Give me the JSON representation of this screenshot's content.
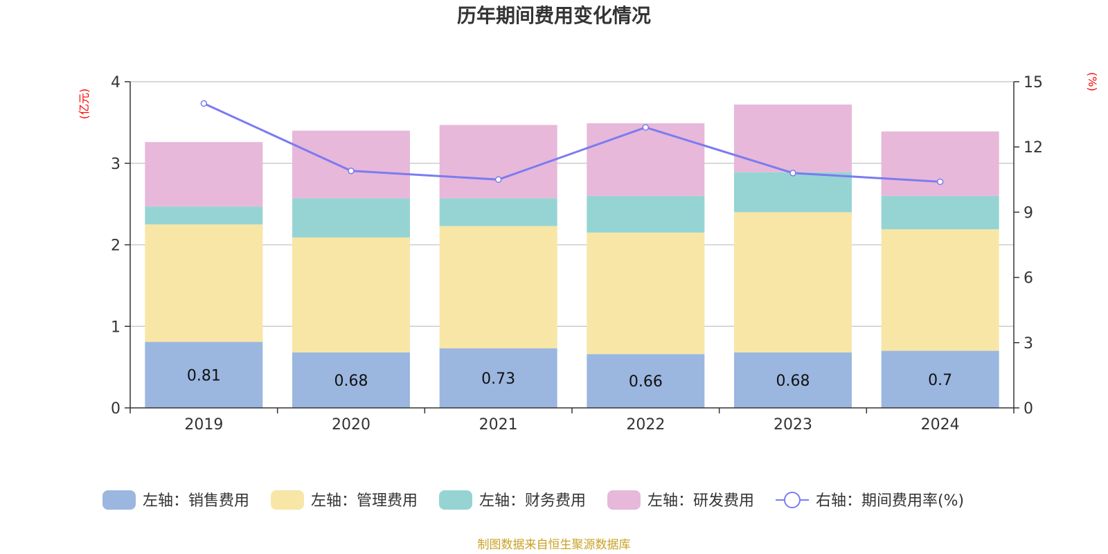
{
  "chart_data": {
    "type": "bar",
    "stacked": true,
    "title": "历年期间费用变化情况",
    "categories": [
      "2019",
      "2020",
      "2021",
      "2022",
      "2023",
      "2024"
    ],
    "left_axis": {
      "unit_label": "(亿元)",
      "ylim": [
        0,
        4
      ],
      "ticks": [
        "0",
        "1",
        "2",
        "3",
        "4"
      ]
    },
    "right_axis": {
      "unit_label": "(%)",
      "ylim": [
        0,
        15
      ],
      "ticks": [
        "0",
        "3",
        "6",
        "9",
        "12",
        "15"
      ]
    },
    "series": [
      {
        "name": "左轴：销售费用",
        "axis": "left",
        "color": "#9bb7e0",
        "values": [
          0.81,
          0.68,
          0.73,
          0.66,
          0.68,
          0.7
        ],
        "data_labels": [
          "0.81",
          "0.68",
          "0.73",
          "0.66",
          "0.68",
          "0.7"
        ]
      },
      {
        "name": "左轴：管理费用",
        "axis": "left",
        "color": "#f7e6a6",
        "values": [
          1.44,
          1.41,
          1.5,
          1.49,
          1.72,
          1.49
        ]
      },
      {
        "name": "左轴：财务费用",
        "axis": "left",
        "color": "#96d4d4",
        "values": [
          0.22,
          0.48,
          0.34,
          0.45,
          0.49,
          0.41
        ]
      },
      {
        "name": "左轴：研发费用",
        "axis": "left",
        "color": "#e7b8d9",
        "values": [
          0.79,
          0.83,
          0.9,
          0.89,
          0.83,
          0.79
        ]
      },
      {
        "name": "右轴：期间费用率(%)",
        "axis": "right",
        "type": "line",
        "color": "#7b7bf0",
        "values": [
          14.0,
          10.9,
          10.5,
          12.9,
          10.8,
          10.4
        ]
      }
    ],
    "grid": true,
    "legend_position": "bottom"
  },
  "source_note": "制图数据来自恒生聚源数据库"
}
